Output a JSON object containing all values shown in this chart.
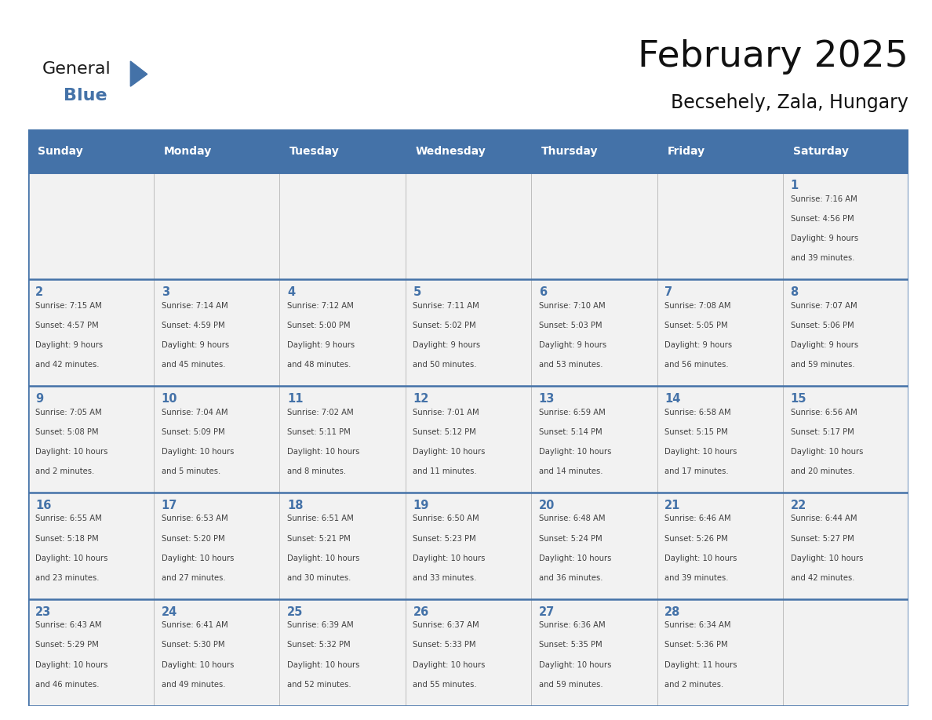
{
  "title": "February 2025",
  "subtitle": "Becsehely, Zala, Hungary",
  "days_of_week": [
    "Sunday",
    "Monday",
    "Tuesday",
    "Wednesday",
    "Thursday",
    "Friday",
    "Saturday"
  ],
  "header_bg": "#4472A8",
  "header_text": "#FFFFFF",
  "cell_bg_light": "#F2F2F2",
  "day_number_color": "#4472A8",
  "text_color": "#404040",
  "border_color": "#4472A8",
  "cell_divider_color": "#AAAAAA",
  "calendar_data": [
    [
      null,
      null,
      null,
      null,
      null,
      null,
      {
        "day": 1,
        "sunrise": "7:16 AM",
        "sunset": "4:56 PM",
        "daylight": "9 hours and 39 minutes."
      }
    ],
    [
      {
        "day": 2,
        "sunrise": "7:15 AM",
        "sunset": "4:57 PM",
        "daylight": "9 hours and 42 minutes."
      },
      {
        "day": 3,
        "sunrise": "7:14 AM",
        "sunset": "4:59 PM",
        "daylight": "9 hours and 45 minutes."
      },
      {
        "day": 4,
        "sunrise": "7:12 AM",
        "sunset": "5:00 PM",
        "daylight": "9 hours and 48 minutes."
      },
      {
        "day": 5,
        "sunrise": "7:11 AM",
        "sunset": "5:02 PM",
        "daylight": "9 hours and 50 minutes."
      },
      {
        "day": 6,
        "sunrise": "7:10 AM",
        "sunset": "5:03 PM",
        "daylight": "9 hours and 53 minutes."
      },
      {
        "day": 7,
        "sunrise": "7:08 AM",
        "sunset": "5:05 PM",
        "daylight": "9 hours and 56 minutes."
      },
      {
        "day": 8,
        "sunrise": "7:07 AM",
        "sunset": "5:06 PM",
        "daylight": "9 hours and 59 minutes."
      }
    ],
    [
      {
        "day": 9,
        "sunrise": "7:05 AM",
        "sunset": "5:08 PM",
        "daylight": "10 hours and 2 minutes."
      },
      {
        "day": 10,
        "sunrise": "7:04 AM",
        "sunset": "5:09 PM",
        "daylight": "10 hours and 5 minutes."
      },
      {
        "day": 11,
        "sunrise": "7:02 AM",
        "sunset": "5:11 PM",
        "daylight": "10 hours and 8 minutes."
      },
      {
        "day": 12,
        "sunrise": "7:01 AM",
        "sunset": "5:12 PM",
        "daylight": "10 hours and 11 minutes."
      },
      {
        "day": 13,
        "sunrise": "6:59 AM",
        "sunset": "5:14 PM",
        "daylight": "10 hours and 14 minutes."
      },
      {
        "day": 14,
        "sunrise": "6:58 AM",
        "sunset": "5:15 PM",
        "daylight": "10 hours and 17 minutes."
      },
      {
        "day": 15,
        "sunrise": "6:56 AM",
        "sunset": "5:17 PM",
        "daylight": "10 hours and 20 minutes."
      }
    ],
    [
      {
        "day": 16,
        "sunrise": "6:55 AM",
        "sunset": "5:18 PM",
        "daylight": "10 hours and 23 minutes."
      },
      {
        "day": 17,
        "sunrise": "6:53 AM",
        "sunset": "5:20 PM",
        "daylight": "10 hours and 27 minutes."
      },
      {
        "day": 18,
        "sunrise": "6:51 AM",
        "sunset": "5:21 PM",
        "daylight": "10 hours and 30 minutes."
      },
      {
        "day": 19,
        "sunrise": "6:50 AM",
        "sunset": "5:23 PM",
        "daylight": "10 hours and 33 minutes."
      },
      {
        "day": 20,
        "sunrise": "6:48 AM",
        "sunset": "5:24 PM",
        "daylight": "10 hours and 36 minutes."
      },
      {
        "day": 21,
        "sunrise": "6:46 AM",
        "sunset": "5:26 PM",
        "daylight": "10 hours and 39 minutes."
      },
      {
        "day": 22,
        "sunrise": "6:44 AM",
        "sunset": "5:27 PM",
        "daylight": "10 hours and 42 minutes."
      }
    ],
    [
      {
        "day": 23,
        "sunrise": "6:43 AM",
        "sunset": "5:29 PM",
        "daylight": "10 hours and 46 minutes."
      },
      {
        "day": 24,
        "sunrise": "6:41 AM",
        "sunset": "5:30 PM",
        "daylight": "10 hours and 49 minutes."
      },
      {
        "day": 25,
        "sunrise": "6:39 AM",
        "sunset": "5:32 PM",
        "daylight": "10 hours and 52 minutes."
      },
      {
        "day": 26,
        "sunrise": "6:37 AM",
        "sunset": "5:33 PM",
        "daylight": "10 hours and 55 minutes."
      },
      {
        "day": 27,
        "sunrise": "6:36 AM",
        "sunset": "5:35 PM",
        "daylight": "10 hours and 59 minutes."
      },
      {
        "day": 28,
        "sunrise": "6:34 AM",
        "sunset": "5:36 PM",
        "daylight": "11 hours and 2 minutes."
      },
      null
    ]
  ],
  "logo_color_general": "#1a1a1a",
  "logo_color_blue": "#4472A8",
  "logo_triangle_color": "#4472A8"
}
